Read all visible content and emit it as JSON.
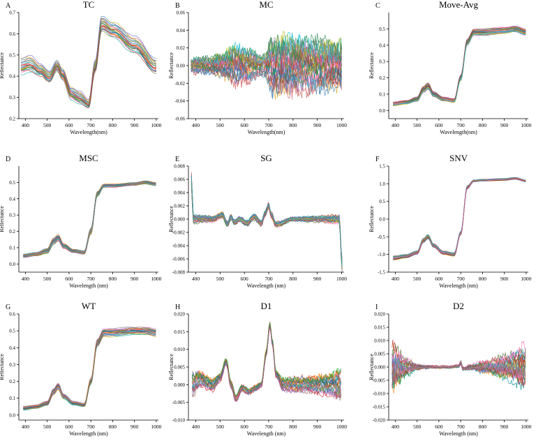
{
  "chart_data": [
    {
      "type": "line",
      "panel_letter": "A",
      "title": "TC",
      "xlabel": "Wavelength(nm)",
      "ylabel": "Reflectance",
      "xlim": [
        370,
        1010
      ],
      "ylim": [
        0.2,
        0.7
      ],
      "xticks": [
        400,
        500,
        600,
        700,
        800,
        900,
        1000
      ],
      "yticks": [
        0.2,
        0.3,
        0.4,
        0.5,
        0.6,
        0.7
      ],
      "ytick_labels": [
        "0.2",
        "0.3",
        "0.4",
        "0.5",
        "0.6",
        "0.7"
      ],
      "x": [
        380,
        420,
        470,
        510,
        545,
        570,
        610,
        650,
        690,
        720,
        750,
        800,
        900,
        1000
      ],
      "values": [
        0.45,
        0.46,
        0.43,
        0.4,
        0.45,
        0.41,
        0.32,
        0.3,
        0.27,
        0.45,
        0.65,
        0.62,
        0.55,
        0.45
      ],
      "spread": [
        0.04,
        0.04,
        0.03,
        0.03,
        0.03,
        0.03,
        0.03,
        0.03,
        0.02,
        0.03,
        0.04,
        0.04,
        0.04,
        0.04
      ],
      "series_count": 24
    },
    {
      "type": "line",
      "panel_letter": "B",
      "title": "MC",
      "xlabel": "Wavelength(nm)",
      "ylabel": "Reflectance",
      "xlim": [
        370,
        1010
      ],
      "ylim": [
        -0.06,
        0.06
      ],
      "xticks": [
        400,
        500,
        600,
        700,
        800,
        900,
        1000
      ],
      "yticks": [
        -0.06,
        -0.04,
        -0.02,
        0.0,
        0.02,
        0.04,
        0.06
      ],
      "ytick_labels": [
        "-0.06",
        "-0.04",
        "-0.02",
        "0.00",
        "0.02",
        "0.04",
        "0.06"
      ],
      "x": [
        380,
        450,
        500,
        560,
        620,
        680,
        720,
        760,
        850,
        1000
      ],
      "values": [
        0,
        0,
        0,
        0,
        0,
        0,
        0,
        0,
        0,
        0
      ],
      "spread": [
        0.008,
        0.008,
        0.012,
        0.02,
        0.015,
        0.01,
        0.03,
        0.03,
        0.025,
        0.025
      ],
      "series_count": 30
    },
    {
      "type": "line",
      "panel_letter": "C",
      "title": "Move-Avg",
      "xlabel": "Wavelength(nm)",
      "ylabel": "Reflectance",
      "xlim": [
        370,
        1010
      ],
      "ylim": [
        -0.05,
        0.6
      ],
      "xticks": [
        400,
        500,
        600,
        700,
        800,
        900,
        1000
      ],
      "yticks": [
        0.0,
        0.1,
        0.2,
        0.3,
        0.4,
        0.5
      ],
      "ytick_labels": [
        "0.0",
        "0.1",
        "0.2",
        "0.3",
        "0.4",
        "0.5"
      ],
      "x": [
        390,
        450,
        500,
        530,
        550,
        575,
        620,
        670,
        700,
        730,
        760,
        800,
        900,
        950,
        1000
      ],
      "values": [
        0.04,
        0.05,
        0.07,
        0.13,
        0.15,
        0.1,
        0.07,
        0.06,
        0.2,
        0.42,
        0.48,
        0.48,
        0.49,
        0.5,
        0.48
      ],
      "spread": [
        0.012,
        0.012,
        0.015,
        0.02,
        0.02,
        0.015,
        0.012,
        0.012,
        0.02,
        0.02,
        0.02,
        0.02,
        0.02,
        0.02,
        0.02
      ],
      "series_count": 24
    },
    {
      "type": "line",
      "panel_letter": "D",
      "title": "MSC",
      "xlabel": "Wavelength (nm)",
      "ylabel": "Reflectance",
      "xlim": [
        370,
        1010
      ],
      "ylim": [
        -0.05,
        0.6
      ],
      "xticks": [
        400,
        500,
        600,
        700,
        800,
        900,
        1000
      ],
      "yticks": [
        0.0,
        0.1,
        0.2,
        0.3,
        0.4,
        0.5
      ],
      "ytick_labels": [
        "0.0",
        "0.1",
        "0.2",
        "0.3",
        "0.4",
        "0.5"
      ],
      "x": [
        390,
        450,
        500,
        530,
        550,
        575,
        620,
        670,
        700,
        730,
        760,
        800,
        900,
        950,
        1000
      ],
      "values": [
        0.05,
        0.06,
        0.08,
        0.14,
        0.16,
        0.11,
        0.08,
        0.07,
        0.2,
        0.43,
        0.48,
        0.48,
        0.49,
        0.5,
        0.49
      ],
      "spread": [
        0.012,
        0.012,
        0.015,
        0.02,
        0.02,
        0.015,
        0.012,
        0.012,
        0.02,
        0.015,
        0.01,
        0.01,
        0.01,
        0.01,
        0.01
      ],
      "series_count": 24
    },
    {
      "type": "line",
      "panel_letter": "E",
      "title": "SG",
      "xlabel": "Wavelength (nm)",
      "ylabel": "Reflectance",
      "xlim": [
        370,
        1010
      ],
      "ylim": [
        -0.008,
        0.008
      ],
      "xticks": [
        400,
        500,
        600,
        700,
        800,
        900,
        1000
      ],
      "yticks": [
        -0.008,
        -0.006,
        -0.004,
        -0.002,
        0.0,
        0.002,
        0.004,
        0.006,
        0.008
      ],
      "ytick_labels": [
        "-0.008",
        "-0.006",
        "-0.004",
        "-0.002",
        "0.000",
        "0.002",
        "0.004",
        "0.006",
        "0.008"
      ],
      "x": [
        382,
        390,
        420,
        470,
        510,
        530,
        545,
        560,
        580,
        610,
        640,
        670,
        685,
        700,
        710,
        730,
        800,
        900,
        990,
        1002
      ],
      "values": [
        0.006,
        0.0,
        0.0,
        0.0,
        0.0006,
        -0.0008,
        0.0003,
        -0.0005,
        0.0,
        -0.0006,
        0.0003,
        -0.0006,
        0.0008,
        0.002,
        0.0006,
        -0.0008,
        0.0,
        0.0,
        0.0,
        -0.007
      ],
      "spread": [
        0.001,
        0.0006,
        0.0005,
        0.0004,
        0.0004,
        0.0004,
        0.0004,
        0.0004,
        0.0004,
        0.0004,
        0.0004,
        0.0004,
        0.0004,
        0.0004,
        0.0004,
        0.0004,
        0.0003,
        0.0004,
        0.0006,
        0.001
      ],
      "series_count": 24
    },
    {
      "type": "line",
      "panel_letter": "F",
      "title": "SNV",
      "xlabel": "Wavelength (nm)",
      "ylabel": "Reflectance",
      "xlim": [
        370,
        1010
      ],
      "ylim": [
        -1.5,
        1.5
      ],
      "xticks": [
        400,
        500,
        600,
        700,
        800,
        900,
        1000
      ],
      "yticks": [
        -1.5,
        -1.0,
        -0.5,
        0.0,
        0.5,
        1.0,
        1.5
      ],
      "ytick_labels": [
        "-1.5",
        "-1.0",
        "-0.5",
        "0.0",
        "0.5",
        "1.0",
        "1.5"
      ],
      "x": [
        390,
        450,
        500,
        530,
        550,
        575,
        620,
        670,
        700,
        730,
        760,
        800,
        900,
        950,
        1000
      ],
      "values": [
        -1.1,
        -1.05,
        -0.95,
        -0.6,
        -0.5,
        -0.75,
        -0.95,
        -1.0,
        -0.4,
        0.9,
        1.08,
        1.1,
        1.12,
        1.15,
        1.08
      ],
      "spread": [
        0.06,
        0.05,
        0.05,
        0.07,
        0.07,
        0.06,
        0.05,
        0.05,
        0.05,
        0.05,
        0.03,
        0.03,
        0.03,
        0.03,
        0.03
      ],
      "series_count": 24
    },
    {
      "type": "line",
      "panel_letter": "G",
      "title": "WT",
      "xlabel": "Wavelength (nm)",
      "ylabel": "Reflectance",
      "xlim": [
        370,
        1010
      ],
      "ylim": [
        -0.03,
        0.6
      ],
      "xticks": [
        400,
        500,
        600,
        700,
        800,
        900,
        1000
      ],
      "yticks": [
        0.0,
        0.1,
        0.2,
        0.3,
        0.4,
        0.5,
        0.6
      ],
      "ytick_labels": [
        "0.0",
        "0.1",
        "0.2",
        "0.3",
        "0.4",
        "0.5",
        "0.6"
      ],
      "x": [
        390,
        450,
        500,
        530,
        550,
        575,
        620,
        670,
        700,
        730,
        760,
        800,
        900,
        950,
        1000
      ],
      "values": [
        0.04,
        0.05,
        0.07,
        0.14,
        0.17,
        0.11,
        0.07,
        0.06,
        0.2,
        0.43,
        0.49,
        0.49,
        0.5,
        0.5,
        0.49
      ],
      "spread": [
        0.012,
        0.012,
        0.015,
        0.02,
        0.02,
        0.015,
        0.012,
        0.012,
        0.02,
        0.025,
        0.025,
        0.025,
        0.025,
        0.025,
        0.025
      ],
      "series_count": 24
    },
    {
      "type": "line",
      "panel_letter": "H",
      "title": "D1",
      "xlabel": "Wavelength (nm)",
      "ylabel": "Reflectance",
      "xlim": [
        370,
        1010
      ],
      "ylim": [
        -0.01,
        0.02
      ],
      "xticks": [
        400,
        500,
        600,
        700,
        800,
        900,
        1000
      ],
      "yticks": [
        -0.01,
        -0.005,
        0.0,
        0.005,
        0.01,
        0.015,
        0.02
      ],
      "ytick_labels": [
        "-0.010",
        "-0.005",
        "0.000",
        "0.005",
        "0.010",
        "0.015",
        "0.020"
      ],
      "x": [
        385,
        420,
        470,
        500,
        525,
        545,
        565,
        590,
        620,
        645,
        670,
        690,
        705,
        715,
        730,
        760,
        850,
        950,
        1000
      ],
      "values": [
        0.0,
        0.0015,
        0.0,
        0.002,
        0.0065,
        0.0,
        -0.004,
        -0.001,
        -0.002,
        -0.001,
        0.0,
        0.009,
        0.017,
        0.012,
        0.003,
        0.0,
        0.0,
        0.0,
        0.0
      ],
      "spread": [
        0.003,
        0.002,
        0.0015,
        0.001,
        0.0008,
        0.0008,
        0.0008,
        0.0008,
        0.0008,
        0.0008,
        0.0008,
        0.0008,
        0.0008,
        0.0008,
        0.0008,
        0.0015,
        0.002,
        0.0025,
        0.004
      ],
      "series_count": 24
    },
    {
      "type": "line",
      "panel_letter": "I",
      "title": "D2",
      "xlabel": "Wavelength (nm)",
      "ylabel": "Reflectance",
      "xlim": [
        370,
        1010
      ],
      "ylim": [
        -0.02,
        0.02
      ],
      "xticks": [
        400,
        500,
        600,
        700,
        800,
        900,
        1000
      ],
      "yticks": [
        -0.02,
        -0.015,
        -0.01,
        -0.005,
        0.0,
        0.005,
        0.01,
        0.015,
        0.02
      ],
      "ytick_labels": [
        "-0.020",
        "-0.015",
        "-0.010",
        "-0.005",
        "0.000",
        "0.005",
        "0.010",
        "0.015",
        "0.020"
      ],
      "x": [
        385,
        410,
        450,
        500,
        550,
        600,
        650,
        690,
        700,
        710,
        750,
        800,
        900,
        1000
      ],
      "values": [
        0,
        0,
        0,
        0,
        0,
        0,
        0,
        0.0004,
        0.0015,
        -0.0006,
        0,
        0,
        0,
        0
      ],
      "spread": [
        0.009,
        0.006,
        0.003,
        0.001,
        0.0006,
        0.0005,
        0.0005,
        0.0005,
        0.0008,
        0.0005,
        0.001,
        0.002,
        0.004,
        0.007
      ],
      "series_count": 24
    }
  ]
}
